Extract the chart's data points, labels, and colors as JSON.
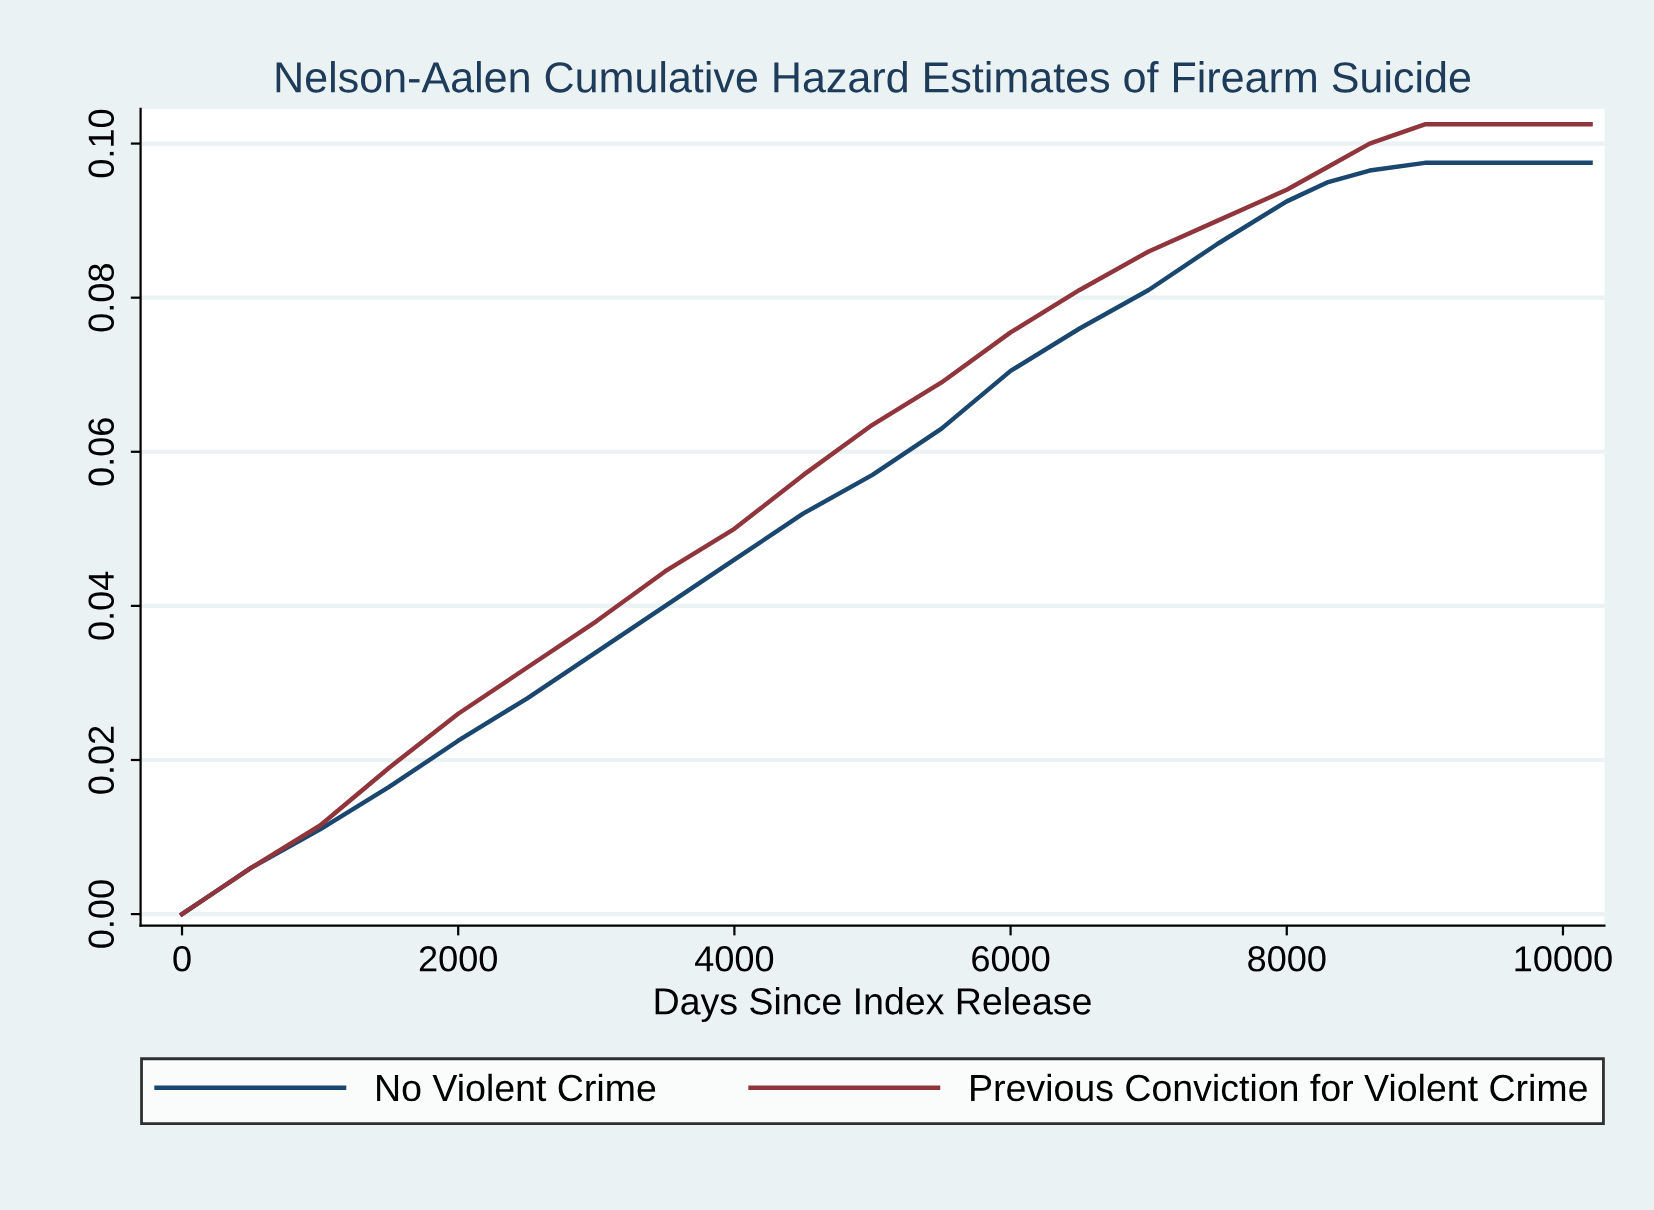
{
  "chart_data": {
    "type": "line",
    "title": "Nelson-Aalen Cumulative Hazard Estimates of Firearm Suicide",
    "xlabel": "Days Since Index Release",
    "xlim": [
      -300,
      10300
    ],
    "xticks": [
      0,
      2000,
      4000,
      6000,
      8000,
      10000
    ],
    "ylim": [
      -0.0015,
      0.1045
    ],
    "yticks": [
      {
        "value": 0,
        "label": "0.00"
      },
      {
        "value": 0.02,
        "label": "0.02"
      },
      {
        "value": 0.04,
        "label": "0.04"
      },
      {
        "value": 0.06,
        "label": "0.06"
      },
      {
        "value": 0.08,
        "label": "0.08"
      },
      {
        "value": 0.1,
        "label": "0.10"
      }
    ],
    "grid": "y",
    "legend": "bottom",
    "marker": "none",
    "line_style": "solid",
    "series": [
      {
        "name": "No Violent Crime",
        "color": "#1a476f",
        "x": [
          0,
          250,
          500,
          1000,
          1500,
          2000,
          2500,
          3000,
          3500,
          4000,
          4500,
          5000,
          5500,
          6000,
          6500,
          7000,
          7500,
          8000,
          8300,
          8600,
          9000,
          10200
        ],
        "values": [
          0,
          0.003,
          0.006,
          0.011,
          0.0165,
          0.0225,
          0.028,
          0.034,
          0.04,
          0.046,
          0.052,
          0.057,
          0.063,
          0.0705,
          0.076,
          0.081,
          0.087,
          0.0925,
          0.095,
          0.0965,
          0.0975,
          0.0975
        ]
      },
      {
        "name": "Previous Conviction for Violent Crime",
        "color": "#90353b",
        "x": [
          0,
          250,
          500,
          1000,
          1500,
          2000,
          2500,
          3000,
          3500,
          4000,
          4500,
          5000,
          5500,
          6000,
          6500,
          7000,
          7500,
          8000,
          8300,
          8600,
          9000,
          10200
        ],
        "values": [
          0,
          0.003,
          0.006,
          0.0115,
          0.019,
          0.026,
          0.032,
          0.038,
          0.0445,
          0.05,
          0.057,
          0.0635,
          0.069,
          0.0755,
          0.081,
          0.086,
          0.09,
          0.094,
          0.097,
          0.1,
          0.1025,
          0.1025
        ]
      }
    ]
  }
}
